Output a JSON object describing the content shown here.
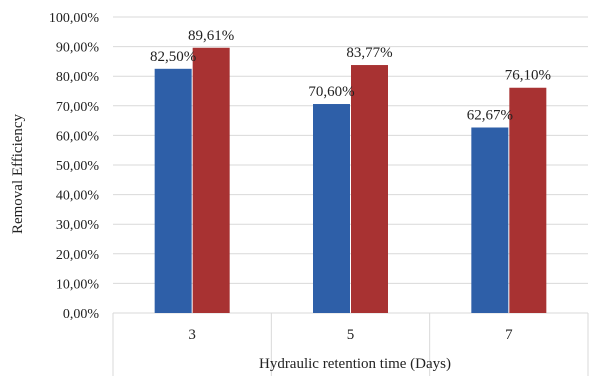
{
  "chart_data": {
    "type": "bar",
    "title": "",
    "xlabel": "Hydraulic retention time (Days)",
    "ylabel": "Removal Efficiency",
    "categories": [
      "3",
      "5",
      "7"
    ],
    "series": [
      {
        "values": [
          82.5,
          70.6,
          62.67
        ],
        "labels": [
          "82,50%",
          "70,60%",
          "62,67%"
        ],
        "color": "#2e5fa8"
      },
      {
        "values": [
          89.61,
          83.77,
          76.1
        ],
        "labels": [
          "89,61%",
          "83,77%",
          "76,10%"
        ],
        "color": "#a83232"
      }
    ],
    "ylim": [
      0,
      100
    ],
    "yticks": [
      0,
      10,
      20,
      30,
      40,
      50,
      60,
      70,
      80,
      90,
      100
    ],
    "ytick_labels": [
      "0,00%",
      "10,00%",
      "20,00%",
      "30,00%",
      "40,00%",
      "50,00%",
      "60,00%",
      "70,00%",
      "80,00%",
      "90,00%",
      "100,00%"
    ],
    "grid": true,
    "legend": false
  }
}
